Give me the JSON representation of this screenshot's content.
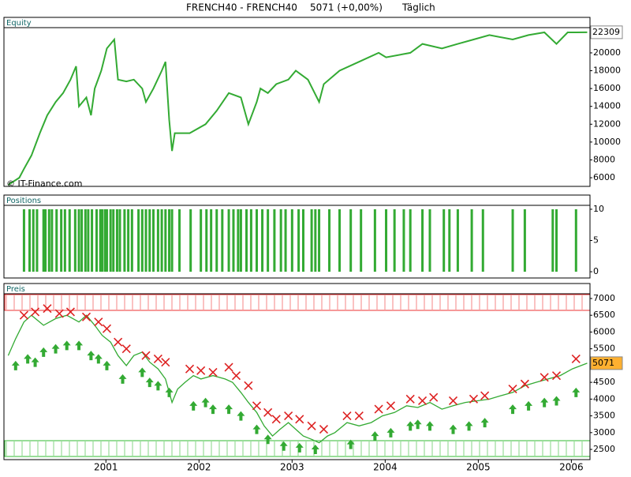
{
  "header": {
    "symbol": "FRENCH40 - FRENCH40",
    "quote": "5071 (+0,00%)",
    "period": "Täglich"
  },
  "watermark": "© IT-Finance.com",
  "chart_data": [
    {
      "type": "line",
      "title": "Equity",
      "color": "#33aa33",
      "xlim": [
        1999.93,
        2006.2
      ],
      "ylim": [
        5030,
        22740
      ],
      "yticks": [
        6000,
        8000,
        10000,
        12000,
        14000,
        16000,
        18000,
        20000
      ],
      "series": [
        {
          "color": "#33aa33",
          "x": [
            1999.95,
            2000.07,
            2000.12,
            2000.2,
            2000.29,
            2000.37,
            2000.46,
            2000.54,
            2000.62,
            2000.68,
            2000.71,
            2000.79,
            2000.84,
            2000.88,
            2000.95,
            2001.01,
            2001.05,
            2001.09,
            2001.13,
            2001.22,
            2001.3,
            2001.39,
            2001.43,
            2001.51,
            2001.6,
            2001.64,
            2001.68,
            2001.71,
            2001.74,
            2001.9,
            2002.07,
            2002.19,
            2002.32,
            2002.45,
            2002.53,
            2002.62,
            2002.66,
            2002.74,
            2002.83,
            2002.96,
            2003.04,
            2003.17,
            2003.29,
            2003.34,
            2003.51,
            2003.72,
            2003.93,
            2004.01,
            2004.27,
            2004.4,
            2004.61,
            2004.78,
            2004.95,
            2005.12,
            2005.37,
            2005.54,
            2005.71,
            2005.84,
            2005.96,
            2006.05,
            2006.17
          ],
          "values": [
            5200,
            6000,
            7000,
            8500,
            11000,
            13000,
            14500,
            15500,
            17000,
            18500,
            14000,
            15000,
            13000,
            16000,
            18000,
            20500,
            21000,
            21500,
            17000,
            16800,
            17000,
            16000,
            14500,
            16000,
            18000,
            19000,
            12500,
            9000,
            11000,
            11000,
            12000,
            13500,
            15500,
            15000,
            12000,
            14500,
            16000,
            15500,
            16500,
            17000,
            18000,
            17000,
            14500,
            16500,
            18000,
            19000,
            20000,
            19500,
            20000,
            21000,
            20500,
            21000,
            21500,
            22000,
            21500,
            22000,
            22300,
            21000,
            22300,
            22300,
            22309
          ]
        }
      ]
    },
    {
      "type": "bar",
      "title": "Positions",
      "color": "#33aa33",
      "xlim": [
        1999.93,
        2006.2
      ],
      "ylim": [
        -1.0,
        10.5
      ],
      "yticks": [
        0,
        5,
        10
      ],
      "series": [
        {
          "color": "#33aa33",
          "x": [
            2000.12,
            2000.18,
            2000.22,
            2000.26,
            2000.33,
            2000.35,
            2000.39,
            2000.42,
            2000.47,
            2000.52,
            2000.56,
            2000.61,
            2000.67,
            2000.71,
            2000.74,
            2000.78,
            2000.81,
            2000.85,
            2000.9,
            2000.94,
            2000.96,
            2000.99,
            2001.01,
            2001.05,
            2001.08,
            2001.12,
            2001.15,
            2001.2,
            2001.24,
            2001.28,
            2001.35,
            2001.39,
            2001.43,
            2001.47,
            2001.51,
            2001.56,
            2001.6,
            2001.64,
            2001.68,
            2001.71,
            2001.79,
            2001.91,
            2002.02,
            2002.08,
            2002.13,
            2002.19,
            2002.25,
            2002.32,
            2002.37,
            2002.42,
            2002.45,
            2002.51,
            2002.56,
            2002.62,
            2002.68,
            2002.74,
            2002.81,
            2002.88,
            2002.93,
            2003.0,
            2003.07,
            2003.12,
            2003.21,
            2003.25,
            2003.29,
            2003.4,
            2003.51,
            2003.63,
            2003.74,
            2003.89,
            2004.01,
            2004.1,
            2004.2,
            2004.27,
            2004.4,
            2004.48,
            2004.63,
            2004.69,
            2004.78,
            2004.93,
            2005.05,
            2005.37,
            2005.5,
            2005.8,
            2005.84,
            2006.05
          ],
          "values": [
            10,
            10,
            10,
            10,
            10,
            10,
            10,
            10,
            10,
            10,
            10,
            10,
            10,
            10,
            10,
            10,
            10,
            10,
            10,
            10,
            10,
            10,
            10,
            10,
            10,
            10,
            10,
            10,
            10,
            10,
            10,
            10,
            10,
            10,
            10,
            10,
            10,
            10,
            10,
            10,
            10,
            10,
            10,
            10,
            10,
            10,
            10,
            10,
            10,
            10,
            10,
            10,
            10,
            10,
            10,
            10,
            10,
            10,
            10,
            10,
            10,
            10,
            10,
            10,
            10,
            10,
            10,
            10,
            10,
            10,
            10,
            10,
            10,
            10,
            10,
            10,
            10,
            10,
            10,
            10,
            10,
            10,
            10,
            10,
            10,
            10
          ]
        }
      ]
    },
    {
      "type": "line",
      "title": "Preis",
      "color": "#33aa33",
      "xlim": [
        1999.93,
        2006.2
      ],
      "ylim": [
        2195,
        7117
      ],
      "xticks": [
        2001,
        2002,
        2003,
        2004,
        2005,
        2006
      ],
      "yticks": [
        2500,
        3000,
        3500,
        4000,
        4500,
        5000,
        5500,
        6000,
        6500,
        7000
      ],
      "series": [
        {
          "color": "#33aa33",
          "x": [
            1999.95,
            2000.03,
            2000.12,
            2000.2,
            2000.33,
            2000.46,
            2000.58,
            2000.71,
            2000.79,
            2000.88,
            2000.96,
            2001.05,
            2001.13,
            2001.22,
            2001.3,
            2001.39,
            2001.47,
            2001.56,
            2001.64,
            2001.71,
            2001.77,
            2001.85,
            2001.94,
            2002.02,
            2002.15,
            2002.28,
            2002.36,
            2002.45,
            2002.53,
            2002.62,
            2002.7,
            2002.79,
            2002.87,
            2002.96,
            2003.04,
            2003.12,
            2003.21,
            2003.29,
            2003.38,
            2003.46,
            2003.59,
            2003.72,
            2003.85,
            2003.97,
            2004.1,
            2004.23,
            2004.35,
            2004.48,
            2004.61,
            2004.73,
            2004.86,
            2004.99,
            2005.12,
            2005.24,
            2005.37,
            2005.5,
            2005.62,
            2005.75,
            2005.88,
            2006.01,
            2006.17
          ],
          "values": [
            5300,
            5800,
            6300,
            6500,
            6200,
            6400,
            6500,
            6300,
            6500,
            6200,
            5900,
            5700,
            5300,
            5000,
            5300,
            5400,
            5100,
            4900,
            4600,
            3900,
            4300,
            4500,
            4700,
            4600,
            4700,
            4600,
            4500,
            4200,
            3900,
            3600,
            3200,
            2900,
            3100,
            3300,
            3100,
            2900,
            2800,
            2700,
            2900,
            3000,
            3300,
            3200,
            3300,
            3500,
            3600,
            3800,
            3750,
            3900,
            3700,
            3800,
            3900,
            3950,
            4000,
            4100,
            4200,
            4400,
            4500,
            4600,
            4700,
            4900,
            5071
          ]
        }
      ],
      "sell_signals": {
        "color": "#dd2222",
        "x": [
          2000.12,
          2000.24,
          2000.37,
          2000.5,
          2000.62,
          2000.79,
          2000.92,
          2001.01,
          2001.13,
          2001.22,
          2001.43,
          2001.56,
          2001.64,
          2001.9,
          2002.02,
          2002.15,
          2002.32,
          2002.4,
          2002.53,
          2002.62,
          2002.74,
          2002.83,
          2002.96,
          2003.08,
          2003.21,
          2003.34,
          2003.59,
          2003.72,
          2003.93,
          2004.06,
          2004.27,
          2004.4,
          2004.52,
          2004.73,
          2004.95,
          2005.07,
          2005.37,
          2005.5,
          2005.71,
          2005.84,
          2006.05
        ],
        "values": [
          6500,
          6600,
          6700,
          6550,
          6600,
          6450,
          6300,
          6100,
          5700,
          5500,
          5300,
          5200,
          5100,
          4900,
          4850,
          4800,
          4950,
          4700,
          4400,
          3800,
          3600,
          3400,
          3500,
          3400,
          3200,
          3100,
          3500,
          3500,
          3700,
          3800,
          4000,
          3950,
          4050,
          3950,
          4000,
          4100,
          4300,
          4450,
          4650,
          4700,
          5200
        ]
      },
      "buy_signals": {
        "color": "#33aa33",
        "x": [
          2000.03,
          2000.16,
          2000.24,
          2000.33,
          2000.46,
          2000.58,
          2000.71,
          2000.84,
          2000.92,
          2001.01,
          2001.18,
          2001.39,
          2001.47,
          2001.56,
          2001.68,
          2001.94,
          2002.07,
          2002.15,
          2002.32,
          2002.45,
          2002.62,
          2002.74,
          2002.91,
          2003.08,
          2003.25,
          2003.63,
          2003.89,
          2004.06,
          2004.27,
          2004.35,
          2004.48,
          2004.73,
          2004.9,
          2005.07,
          2005.37,
          2005.54,
          2005.71,
          2005.84,
          2006.05
        ],
        "values": [
          5000,
          5200,
          5100,
          5400,
          5500,
          5600,
          5600,
          5300,
          5200,
          5000,
          4600,
          4800,
          4500,
          4400,
          4200,
          3800,
          3900,
          3700,
          3700,
          3500,
          3100,
          2800,
          2600,
          2550,
          2500,
          2650,
          2900,
          3000,
          3200,
          3250,
          3200,
          3100,
          3200,
          3300,
          3700,
          3800,
          3900,
          3950,
          4200
        ]
      }
    }
  ]
}
